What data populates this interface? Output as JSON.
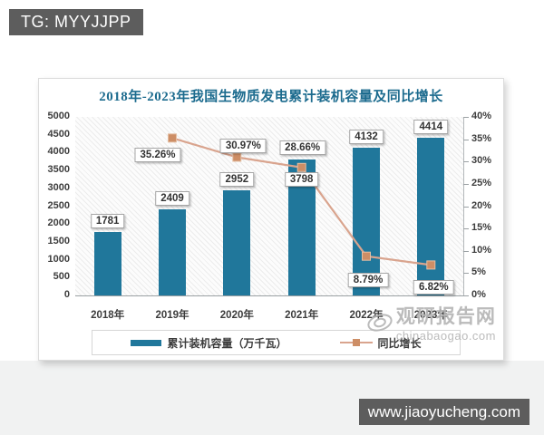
{
  "page": {
    "top_badge": "TG: MYYJJPP",
    "bottom_badge": "www.jiaoyucheng.com"
  },
  "watermark": {
    "name": "观研报告网",
    "domain": "chinabaogao.com"
  },
  "chart_data": {
    "type": "bar",
    "subtype": "bar-line-combo",
    "title": "2018年-2023年我国生物质发电累计装机容量及同比增长",
    "categories": [
      "2018年",
      "2019年",
      "2020年",
      "2021年",
      "2022年",
      "2023年"
    ],
    "series": [
      {
        "name": "累计装机容量（万千瓦）",
        "type": "bar",
        "axis": "left",
        "color": "#20779b",
        "values": [
          1781,
          2409,
          2952,
          3798,
          4132,
          4414
        ],
        "labels": [
          "1781",
          "2409",
          "2952",
          "3798",
          "4132",
          "4414"
        ]
      },
      {
        "name": "同比增长",
        "type": "line",
        "axis": "right",
        "color": "#d9a48e",
        "marker_color": "#cd8e66",
        "values": [
          null,
          35.26,
          30.97,
          28.66,
          8.79,
          6.82
        ],
        "labels": [
          null,
          "35.26%",
          "30.97%",
          "28.66%",
          "8.79%",
          "6.82%"
        ]
      }
    ],
    "left_axis": {
      "min": 0,
      "max": 5000,
      "step": 500,
      "ticks": [
        "5000",
        "4500",
        "4000",
        "3500",
        "3000",
        "2500",
        "2000",
        "1500",
        "1000",
        "500",
        "0"
      ]
    },
    "right_axis": {
      "min": 0,
      "max": 40,
      "step": 5,
      "ticks": [
        "40%",
        "35%",
        "30%",
        "25%",
        "20%",
        "15%",
        "10%",
        "5%",
        "0%"
      ]
    },
    "legend": [
      "累计装机容量（万千瓦）",
      "同比增长"
    ],
    "legend_position": "bottom",
    "grid": false,
    "plot_background": "diagonal-hatch"
  }
}
